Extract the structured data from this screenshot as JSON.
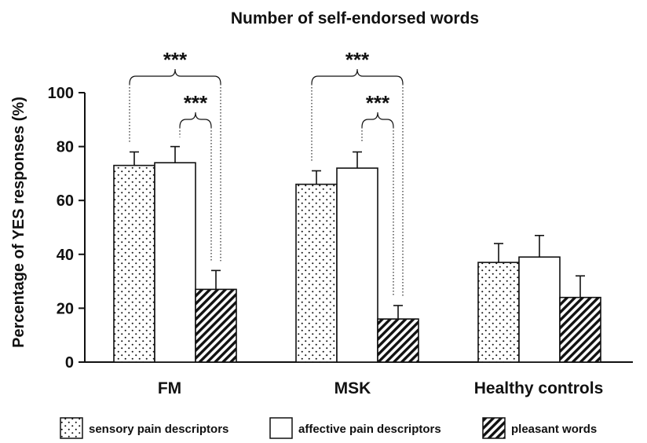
{
  "chart_data": {
    "type": "bar",
    "title": "Number of self-endorsed words",
    "ylabel": "Percentage of YES responses (%)",
    "xlabel": "",
    "ylim": [
      0,
      100
    ],
    "yticks": [
      0,
      20,
      40,
      60,
      80,
      100
    ],
    "categories": [
      "FM",
      "MSK",
      "Healthy controls"
    ],
    "series": [
      {
        "name": "sensory pain descriptors",
        "pattern": "dots",
        "values": [
          73,
          66,
          37
        ],
        "errors": [
          5,
          5,
          7
        ]
      },
      {
        "name": "affective pain descriptors",
        "pattern": "none",
        "values": [
          74,
          72,
          39
        ],
        "errors": [
          6,
          6,
          8
        ]
      },
      {
        "name": "pleasant words",
        "pattern": "hatch",
        "values": [
          27,
          16,
          24
        ],
        "errors": [
          7,
          5,
          8
        ]
      }
    ],
    "annotations": [
      {
        "category": "FM",
        "from_series": 0,
        "to_series": 2,
        "text": "***",
        "level": "upper"
      },
      {
        "category": "FM",
        "from_series": 1,
        "to_series": 2,
        "text": "***",
        "level": "lower"
      },
      {
        "category": "MSK",
        "from_series": 0,
        "to_series": 2,
        "text": "***",
        "level": "upper"
      },
      {
        "category": "MSK",
        "from_series": 1,
        "to_series": 2,
        "text": "***",
        "level": "lower"
      }
    ],
    "legend_position": "bottom",
    "grid": false
  }
}
